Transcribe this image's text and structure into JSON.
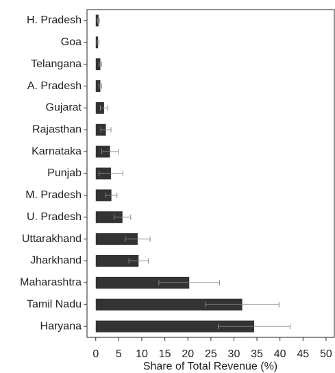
{
  "chart_data": {
    "type": "bar",
    "orientation": "horizontal",
    "x_label": "Share of Total Revenue (%)",
    "categories": [
      "H. Pradesh",
      "Goa",
      "Telangana",
      "A. Pradesh",
      "Gujarat",
      "Rajasthan",
      "Karnataka",
      "Punjab",
      "M. Pradesh",
      "U. Pradesh",
      "Uttarakhand",
      "Jharkhand",
      "Maharashtra",
      "Tamil Nadu",
      "Haryana"
    ],
    "values": [
      0.6,
      0.5,
      1.0,
      1.0,
      1.8,
      2.2,
      3.1,
      3.3,
      3.4,
      5.8,
      9.1,
      9.3,
      20.3,
      31.8,
      34.4
    ],
    "errors": [
      0.2,
      0.2,
      0.3,
      0.3,
      0.8,
      1.1,
      1.8,
      2.6,
      1.2,
      1.8,
      2.7,
      2.1,
      6.6,
      8.0,
      7.8
    ],
    "color": "#333333",
    "error_color": "#888888",
    "xlim": [
      -1.9,
      51.8
    ],
    "xticks": [
      0,
      5,
      10,
      15,
      20,
      25,
      30,
      35,
      40,
      45,
      50
    ],
    "grid": false
  }
}
